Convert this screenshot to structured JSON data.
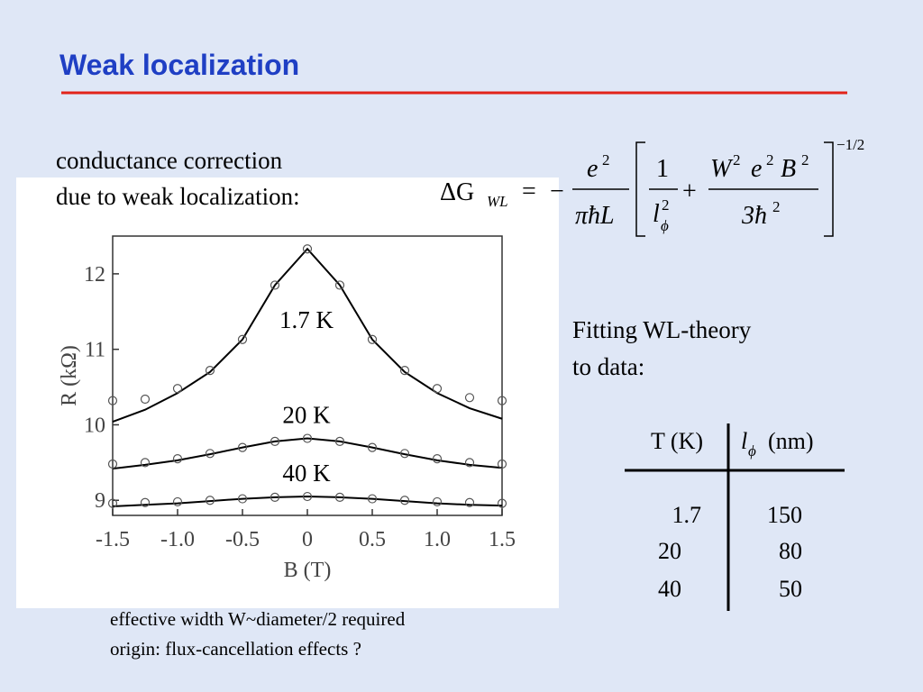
{
  "title": "Weak localization",
  "intro": [
    "conductance correction",
    "due to weak localization:"
  ],
  "formula": {
    "lhs": "ΔG",
    "lhs_sub": "WL",
    "eq": "=",
    "minus": "−",
    "num1": "e",
    "num1_sup": "2",
    "den1": "πħL",
    "num2": "1",
    "den2": "l",
    "den2_sup": "2",
    "den2_sub": "ϕ",
    "plus": "+",
    "num3": [
      "W",
      "2",
      "e",
      "2",
      "B",
      "2"
    ],
    "den3": "3ħ",
    "den3_sup": "2",
    "power": "−1/2"
  },
  "fit_note": [
    "Fitting WL-theory",
    "to data:"
  ],
  "table": {
    "header": [
      "T (K)",
      "l",
      "ϕ",
      "(nm)"
    ],
    "rows": [
      [
        "1.7",
        "150"
      ],
      [
        "20",
        "80"
      ],
      [
        "40",
        "50"
      ]
    ]
  },
  "footnotes": [
    "effective width W~diameter/2 required",
    "origin: flux-cancellation effects ?"
  ],
  "chart_data": {
    "type": "scatter",
    "x_label": "B (T)",
    "y_label": "R (kΩ)",
    "x": [
      -1.5,
      -1.25,
      -1,
      -0.75,
      -0.5,
      -0.25,
      0,
      0.25,
      0.5,
      0.75,
      1,
      1.25,
      1.5
    ],
    "xlim": [
      -1.5,
      1.5
    ],
    "ylim": [
      8.8,
      12.5
    ],
    "xticks": [
      -1.5,
      {
        "value": -1,
        "label": "-1.0"
      },
      -0.5,
      0,
      0.5,
      {
        "value": 1,
        "label": "1.0"
      },
      1.5
    ],
    "yticks": [
      9,
      10,
      11,
      12
    ],
    "series": [
      {
        "name": "1.7 K",
        "color": "#555555",
        "values": [
          10.32,
          10.34,
          10.48,
          10.72,
          11.13,
          11.85,
          12.33,
          11.85,
          11.13,
          10.72,
          10.48,
          10.36,
          10.32
        ],
        "fit": [
          10.04,
          10.2,
          10.42,
          10.7,
          11.13,
          11.85,
          12.33,
          11.85,
          11.13,
          10.7,
          10.42,
          10.22,
          10.08
        ]
      },
      {
        "name": "20 K",
        "color": "#555555",
        "values": [
          9.48,
          9.5,
          9.55,
          9.62,
          9.7,
          9.78,
          9.82,
          9.78,
          9.7,
          9.62,
          9.55,
          9.5,
          9.48
        ],
        "fit": [
          9.42,
          9.47,
          9.53,
          9.61,
          9.7,
          9.78,
          9.82,
          9.78,
          9.7,
          9.61,
          9.53,
          9.47,
          9.43
        ]
      },
      {
        "name": "40 K",
        "color": "#555555",
        "values": [
          8.96,
          8.97,
          8.98,
          9.0,
          9.02,
          9.04,
          9.05,
          9.04,
          9.02,
          9.0,
          8.98,
          8.97,
          8.96
        ],
        "fit": [
          8.92,
          8.94,
          8.96,
          8.99,
          9.02,
          9.04,
          9.05,
          9.04,
          9.02,
          8.99,
          8.96,
          8.94,
          8.93
        ]
      }
    ]
  }
}
